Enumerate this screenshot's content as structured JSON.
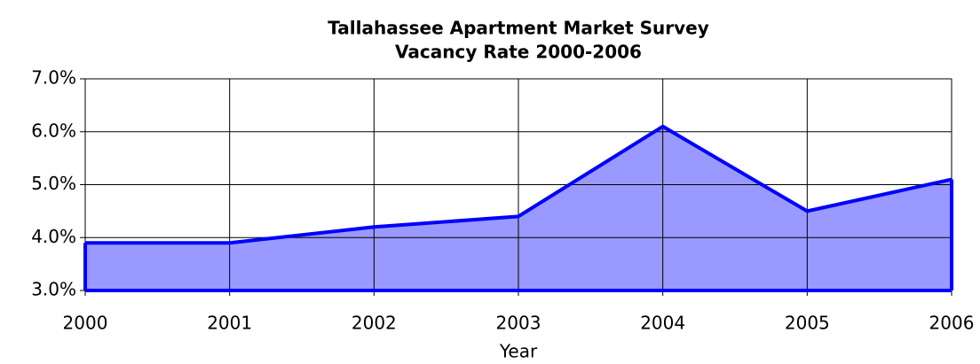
{
  "chart_data": {
    "type": "area",
    "title": "Tallahassee Apartment Market Survey",
    "subtitle": "Vacancy Rate 2000-2006",
    "x_label": "Year",
    "x": [
      2000,
      2001,
      2002,
      2003,
      2004,
      2005,
      2006
    ],
    "series": [
      {
        "name": "Vacancy Rate",
        "color": "#0000ff",
        "fill": "#9999ff",
        "values": [
          3.9,
          3.9,
          4.2,
          4.4,
          6.1,
          4.5,
          5.1
        ]
      }
    ],
    "xlim": [
      2000,
      2006
    ],
    "xticks": [
      2000,
      2001,
      2002,
      2003,
      2004,
      2005,
      2006
    ],
    "ylim": [
      3,
      7
    ],
    "yticks": [
      {
        "value": 3,
        "label": "3.0%"
      },
      {
        "value": 4,
        "label": "4.0%"
      },
      {
        "value": 5,
        "label": "5.0%"
      },
      {
        "value": 6,
        "label": "6.0%"
      },
      {
        "value": 7,
        "label": "7.0%"
      }
    ],
    "grid": true
  }
}
